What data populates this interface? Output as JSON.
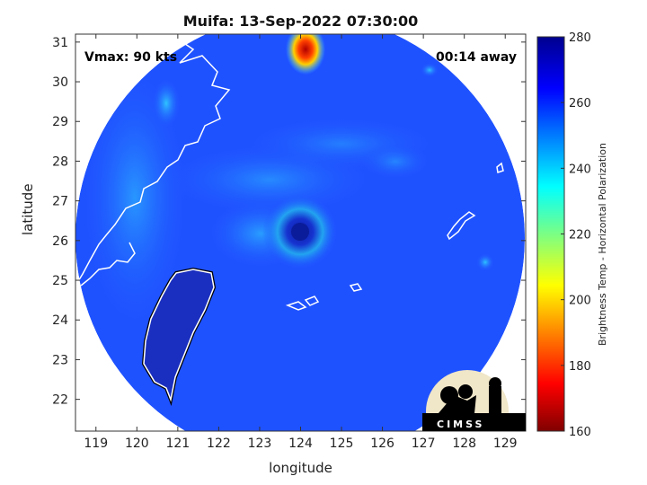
{
  "title": "Muifa: 13-Sep-2022 07:30:00",
  "xlabel": "longitude",
  "ylabel": "latitude",
  "colorbar_label": "Brightness Temp - Horizontal Polarization",
  "annotations": {
    "vmax": "Vmax: 90 kts",
    "time_away": "00:14 away"
  },
  "logo_text": "CIMSS",
  "chart_data": {
    "type": "heatmap",
    "x_ticks": [
      119,
      120,
      121,
      122,
      123,
      124,
      125,
      126,
      127,
      128,
      129
    ],
    "y_ticks": [
      22,
      23,
      24,
      25,
      26,
      27,
      28,
      29,
      30,
      31
    ],
    "xlim": [
      118.5,
      129.5
    ],
    "ylim": [
      21.2,
      31.2
    ],
    "colorbar": {
      "min": 160,
      "max": 280,
      "ticks": [
        160,
        180,
        200,
        220,
        240,
        260,
        280
      ],
      "colormap": "jet"
    },
    "storm_center": {
      "lon": 124.0,
      "lat": 26.1
    },
    "swath_center": {
      "lon": 124.0,
      "lat": 26.3
    }
  },
  "colors": {
    "background_field": "#1f4fff",
    "cold_core": "#c01010"
  }
}
